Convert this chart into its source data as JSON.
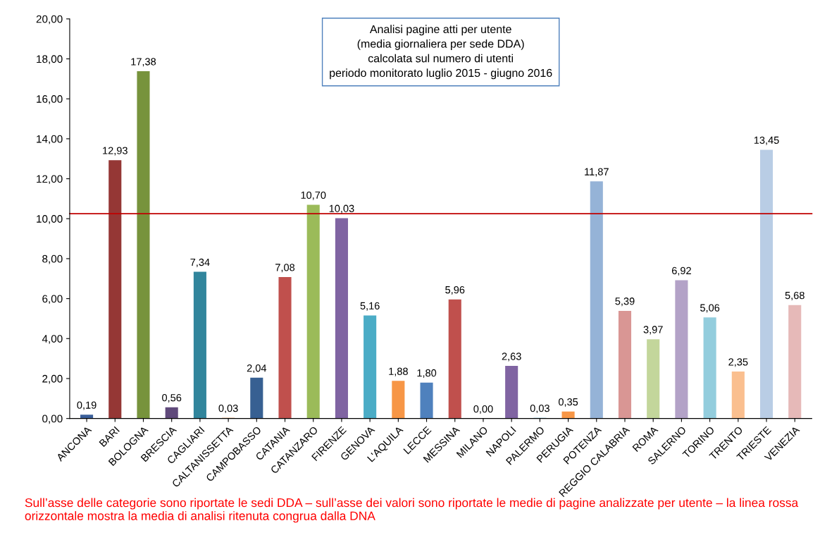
{
  "chart_data": {
    "type": "bar",
    "title": "Analisi pagine atti per utente\n(media giornaliera per sede DDA)\ncalcolata sul numero di utenti\nperiodo monitorato luglio 2015 - giugno 2016",
    "categories": [
      "ANCONA",
      "BARI",
      "BOLOGNA",
      "BRESCIA",
      "CAGLIARI",
      "CALTANISSETTA",
      "CAMPOBASSO",
      "CATANIA",
      "CATANZARO",
      "FIRENZE",
      "GENOVA",
      "L'AQUILA",
      "LECCE",
      "MESSINA",
      "MILANO",
      "NAPOLI",
      "PALERMO",
      "PERUGIA",
      "POTENZA",
      "REGGIO CALABRIA",
      "ROMA",
      "SALERNO",
      "TORINO",
      "TRENTO",
      "TRIESTE",
      "VENEZIA"
    ],
    "values": [
      0.19,
      12.93,
      17.38,
      0.56,
      7.34,
      0.03,
      2.04,
      7.08,
      10.7,
      10.03,
      5.16,
      1.88,
      1.8,
      5.96,
      0.0,
      2.63,
      0.03,
      0.35,
      11.87,
      5.39,
      3.97,
      6.92,
      5.06,
      2.35,
      13.45,
      5.68
    ],
    "value_labels": [
      "0,19",
      "12,93",
      "17,38",
      "0,56",
      "7,34",
      "0,03",
      "2,04",
      "7,08",
      "10,70",
      "10,03",
      "5,16",
      "1,88",
      "1,80",
      "5,96",
      "0,00",
      "2,63",
      "0,03",
      "0,35",
      "11,87",
      "5,39",
      "3,97",
      "6,92",
      "5,06",
      "2,35",
      "13,45",
      "5,68"
    ],
    "colors": [
      "#3a5f9a",
      "#953735",
      "#77933c",
      "#604a7b",
      "#31859c",
      "#e46c0a",
      "#376092",
      "#c0504d",
      "#9bbb59",
      "#8064a2",
      "#4bacc6",
      "#f79646",
      "#4f81bd",
      "#c0504d",
      "#9bbb59",
      "#8064a2",
      "#4bacc6",
      "#f79646",
      "#95b3d7",
      "#d99694",
      "#c3d69b",
      "#b3a2c7",
      "#93cddd",
      "#fabf8f",
      "#b9cde5",
      "#e6b9b8"
    ],
    "ylim": [
      0,
      20
    ],
    "yticks": [
      {
        "value": 0,
        "label": "0,00"
      },
      {
        "value": 2,
        "label": "2,00"
      },
      {
        "value": 4,
        "label": "4,00"
      },
      {
        "value": 6,
        "label": "6,00"
      },
      {
        "value": 8,
        "label": "8,00"
      },
      {
        "value": 10,
        "label": "10,00"
      },
      {
        "value": 12,
        "label": "12,00"
      },
      {
        "value": 14,
        "label": "14,00"
      },
      {
        "value": 16,
        "label": "16,00"
      },
      {
        "value": 18,
        "label": "18,00"
      },
      {
        "value": 20,
        "label": "20,00"
      }
    ],
    "ref_lines": [
      {
        "axis": "y",
        "value": 10.25,
        "color": "#c00000"
      }
    ],
    "annotations": [
      "Sull’asse delle categorie sono riportate le sedi DDA – sull’asse dei valori sono riportate le medie di pagine analizzate per utente – la linea rossa orizzontale mostra la media di analisi ritenuta congrua dalla DNA"
    ],
    "grid": false
  }
}
